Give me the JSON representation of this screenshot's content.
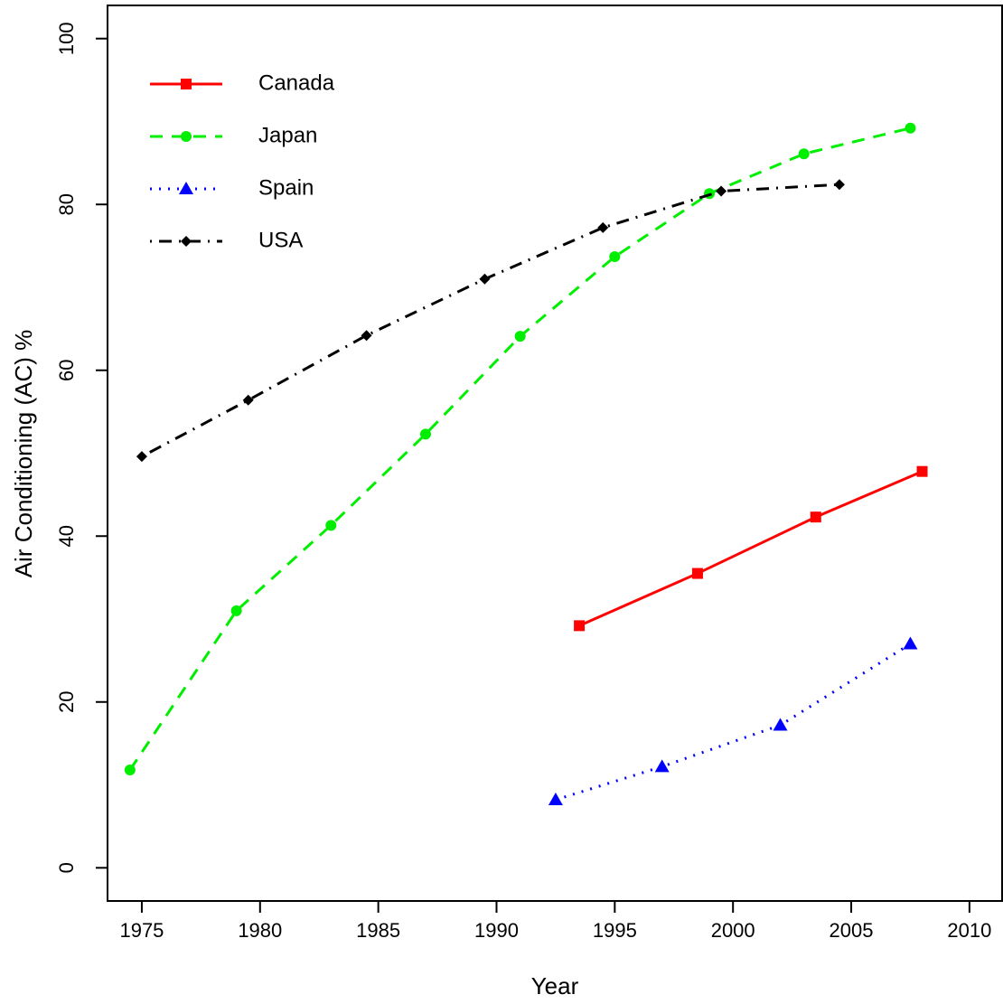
{
  "chart_data": {
    "type": "line",
    "xlabel": "Year",
    "ylabel": "Air Conditioning (AC) %",
    "xlim": [
      1973.55,
      2011.38
    ],
    "ylim": [
      -4,
      104
    ],
    "xticks": [
      1975,
      1980,
      1985,
      1990,
      1995,
      2000,
      2005,
      2010
    ],
    "yticks": [
      0,
      20,
      40,
      60,
      80,
      100
    ],
    "legend": "top-left",
    "series": [
      {
        "name": "Canada",
        "color": "#ff0000",
        "dash": "solid",
        "marker": "square",
        "x": [
          1993.5,
          1998.5,
          2003.5,
          2008
        ],
        "values": [
          29.2,
          35.5,
          42.3,
          47.8
        ]
      },
      {
        "name": "Japan",
        "color": "#00ee00",
        "dash": "dashed",
        "marker": "circle",
        "x": [
          1974.5,
          1979,
          1983,
          1987,
          1991,
          1995,
          1999,
          2003,
          2007.5
        ],
        "values": [
          11.8,
          31,
          41.3,
          52.3,
          64.1,
          73.7,
          81.3,
          86.1,
          89.2
        ]
      },
      {
        "name": "Spain",
        "color": "#0000ff",
        "dash": "dotted",
        "marker": "triangle",
        "x": [
          1992.5,
          1997,
          2002,
          2007.5
        ],
        "values": [
          8.2,
          12.2,
          17.2,
          27
        ]
      },
      {
        "name": "USA",
        "color": "#000000",
        "dash": "dotdash",
        "marker": "diamond",
        "x": [
          1975,
          1979.5,
          1984.5,
          1989.5,
          1994.5,
          1999.5,
          2004.5
        ],
        "values": [
          49.6,
          56.4,
          64.2,
          71,
          77.2,
          81.6,
          82.4
        ]
      }
    ]
  }
}
